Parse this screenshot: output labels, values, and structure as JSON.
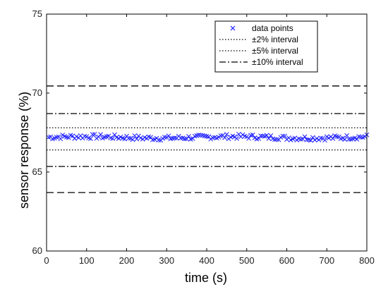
{
  "chart_data": {
    "type": "scatter",
    "xlabel": "time (s)",
    "ylabel": "sensor response (%)",
    "xlim": [
      0,
      800
    ],
    "ylim": [
      60,
      75
    ],
    "xticks": [
      0,
      100,
      200,
      300,
      400,
      500,
      600,
      700,
      800
    ],
    "yticks": [
      60,
      65,
      70,
      75
    ],
    "grid": false,
    "legend_position": "top-right",
    "colors": {
      "points": "#1a1aff",
      "lines": "#000000"
    },
    "series": [
      {
        "name": "data points",
        "marker": "x",
        "x_start": 5,
        "x_end": 800,
        "x_step": 5,
        "mean": 67.2,
        "spread": 0.15
      }
    ],
    "reference_lines": [
      {
        "name": "±2% interval",
        "style": "dotted",
        "values": [
          66.4,
          67.8
        ]
      },
      {
        "name": "±5% interval",
        "style": "dotted",
        "values": []
      },
      {
        "name": "±10% interval",
        "style": "dashdot",
        "values": [
          65.35,
          68.7
        ]
      },
      {
        "name": "",
        "style": "dashed",
        "values": [
          63.7,
          70.45
        ]
      }
    ]
  }
}
